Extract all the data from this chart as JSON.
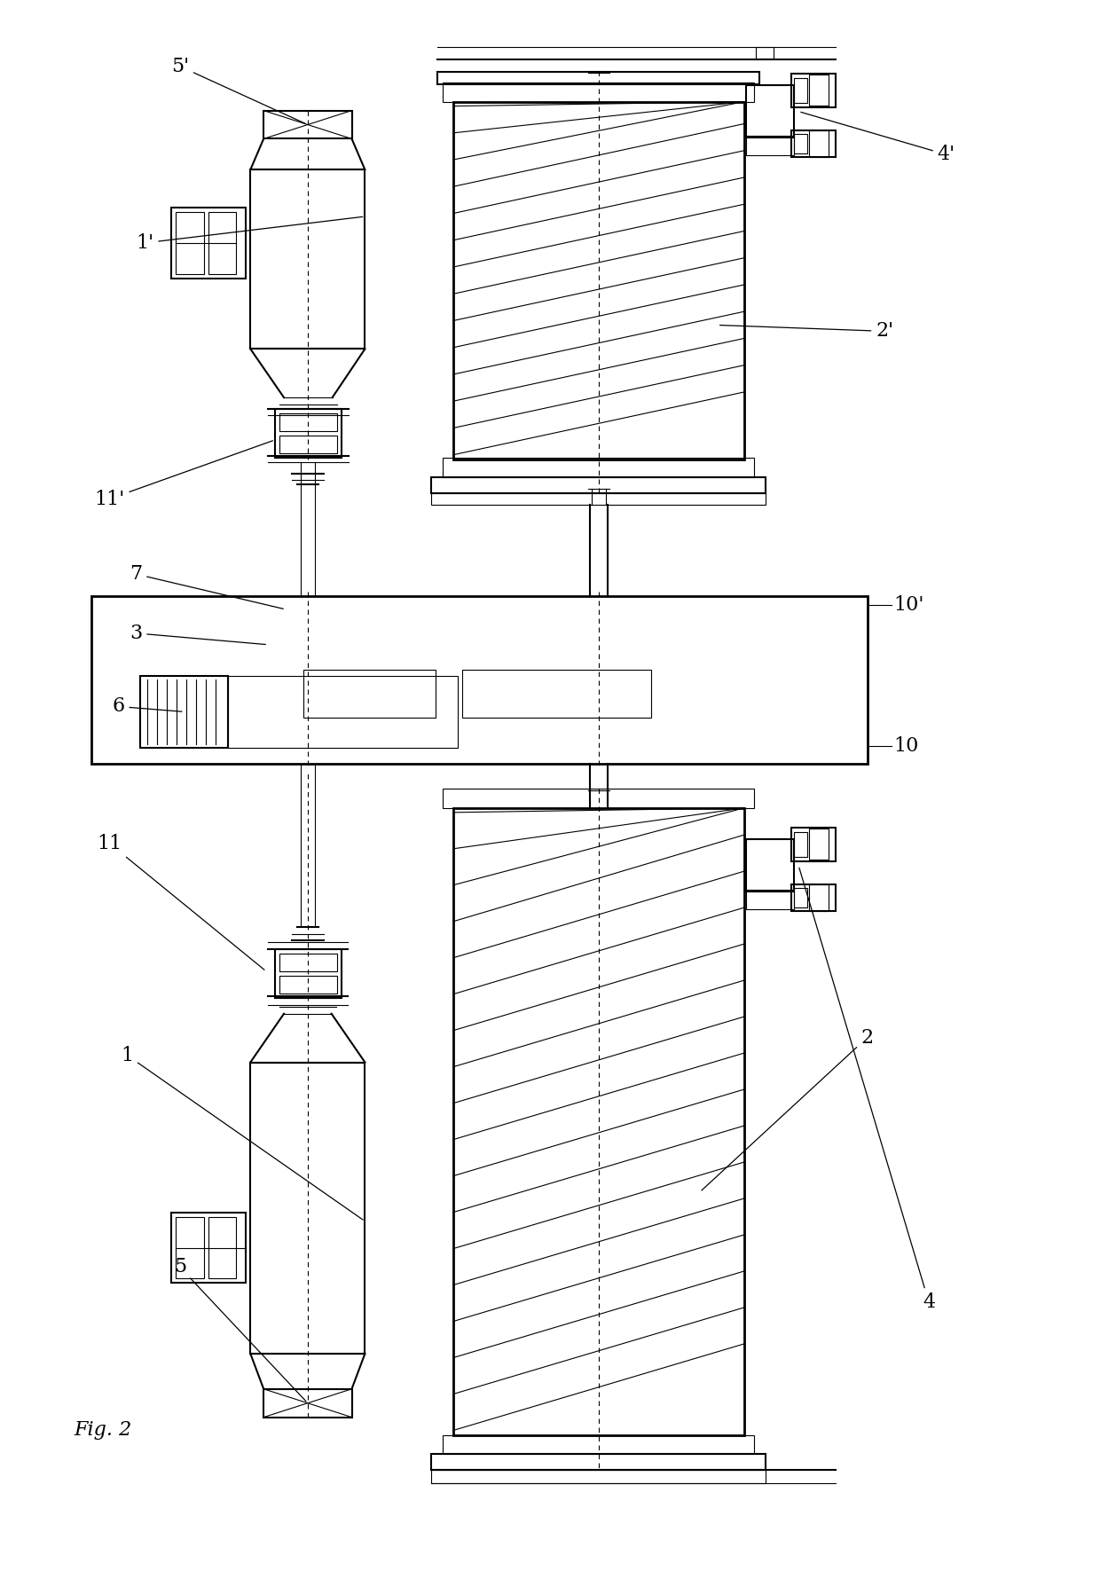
{
  "title": "Fig. 2",
  "bg_color": "#ffffff",
  "line_color": "#000000",
  "fig_width": 12.4,
  "fig_height": 17.71
}
